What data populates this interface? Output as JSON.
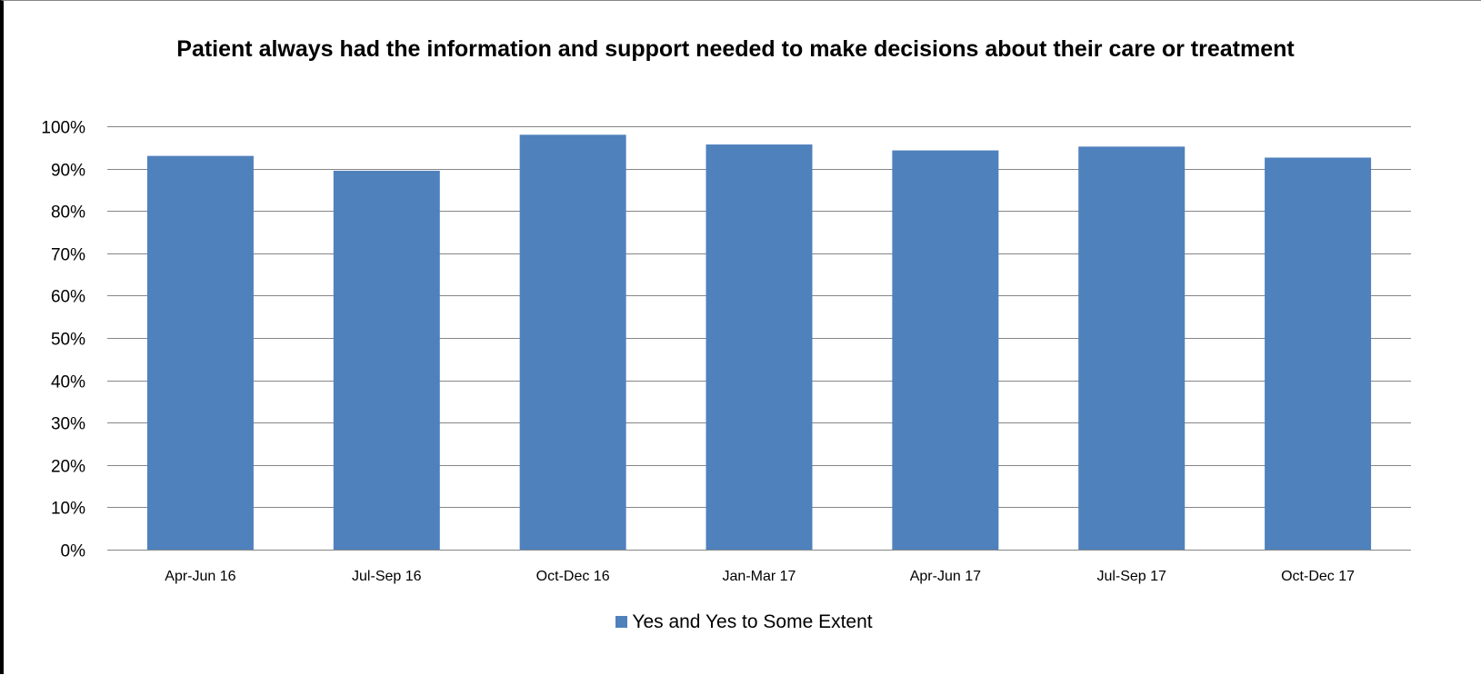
{
  "chart_data": {
    "type": "bar",
    "title": "Patient always had the information and support needed to make decisions about their care or treatment",
    "categories": [
      "Apr-Jun 16",
      "Jul-Sep 16",
      "Oct-Dec 16",
      "Jan-Mar 17",
      "Apr-Jun 17",
      "Jul-Sep 17",
      "Oct-Dec 17"
    ],
    "series": [
      {
        "name": "Yes and Yes to Some Extent",
        "values": [
          0.93,
          0.895,
          0.98,
          0.957,
          0.943,
          0.952,
          0.926
        ]
      }
    ],
    "ylim": [
      0,
      1
    ],
    "yticks": [
      "0%",
      "10%",
      "20%",
      "30%",
      "40%",
      "50%",
      "60%",
      "70%",
      "80%",
      "90%",
      "100%"
    ],
    "xlabel": "",
    "ylabel": "",
    "grid": true,
    "legend_position": "bottom",
    "colors": {
      "bar": "#4f81bd",
      "grid": "#868686",
      "axis": "#868686"
    }
  }
}
